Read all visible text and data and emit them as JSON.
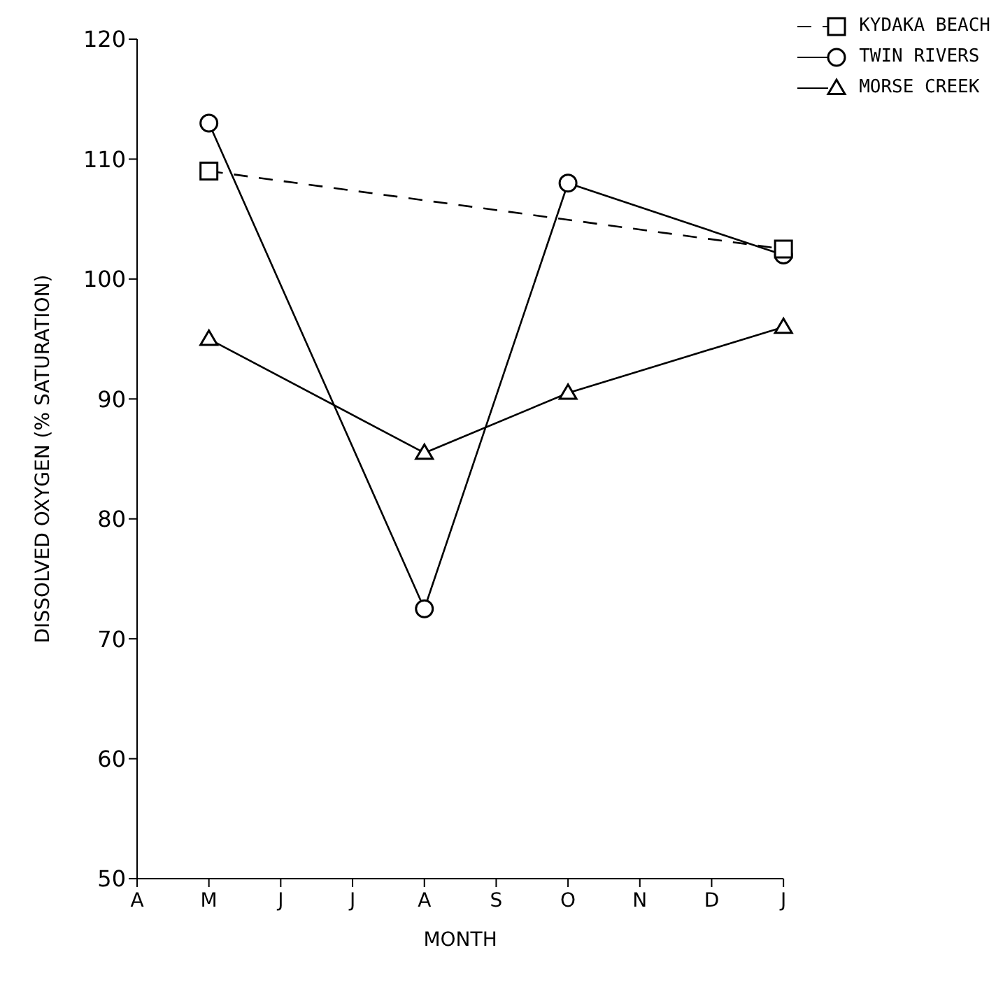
{
  "chart_data": {
    "type": "line",
    "xlabel": "MONTH",
    "ylabel": "DISSOLVED OXYGEN (% SATURATION)",
    "categories": [
      "A",
      "M",
      "J",
      "J",
      "A",
      "S",
      "O",
      "N",
      "D",
      "J"
    ],
    "series": [
      {
        "name": "KYDAKA BEACH",
        "color": "#000000",
        "marker": "square",
        "line_style": "dashed",
        "values": [
          null,
          109,
          null,
          null,
          null,
          null,
          null,
          null,
          null,
          102.5
        ]
      },
      {
        "name": "TWIN RIVERS",
        "color": "#000000",
        "marker": "circle",
        "line_style": "solid",
        "values": [
          null,
          113,
          null,
          null,
          72.5,
          null,
          108,
          null,
          null,
          102
        ]
      },
      {
        "name": "MORSE CREEK",
        "color": "#000000",
        "marker": "triangle",
        "line_style": "solid",
        "values": [
          null,
          95,
          null,
          null,
          85.5,
          null,
          90.5,
          null,
          null,
          96
        ]
      }
    ],
    "ylim": [
      50,
      120
    ],
    "yticks": [
      50,
      60,
      70,
      80,
      90,
      100,
      110,
      120
    ],
    "grid": false,
    "legend": "top right"
  }
}
